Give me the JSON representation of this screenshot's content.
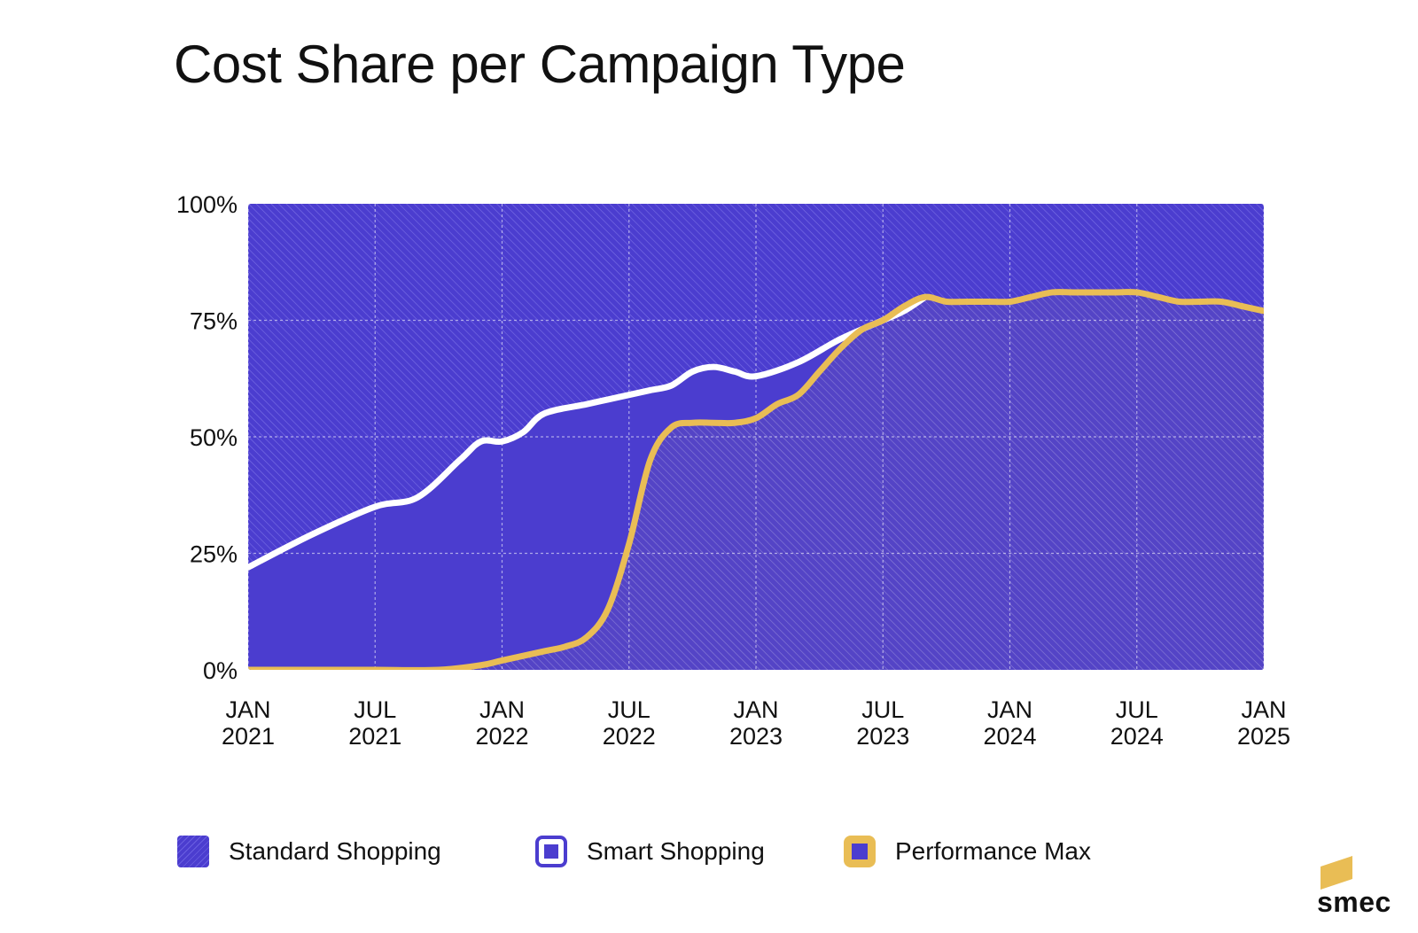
{
  "header": {
    "title": "Cost Share per Campaign Type"
  },
  "chart_data": {
    "type": "area",
    "title": "Cost Share per Campaign Type",
    "xlabel": "",
    "ylabel": "",
    "x_range": [
      "2021-01",
      "2025-01"
    ],
    "ylim": [
      0,
      100
    ],
    "y_ticks": [
      "100%",
      "75%",
      "50%",
      "25%",
      "0%"
    ],
    "x_ticks": [
      {
        "month": "2021-01",
        "line1": "JAN",
        "line2": "2021"
      },
      {
        "month": "2021-07",
        "line1": "JUL",
        "line2": "2021"
      },
      {
        "month": "2022-01",
        "line1": "JAN",
        "line2": "2022"
      },
      {
        "month": "2022-07",
        "line1": "JUL",
        "line2": "2022"
      },
      {
        "month": "2023-01",
        "line1": "JAN",
        "line2": "2023"
      },
      {
        "month": "2023-07",
        "line1": "JUL",
        "line2": "2023"
      },
      {
        "month": "2024-01",
        "line1": "JAN",
        "line2": "2024"
      },
      {
        "month": "2024-07",
        "line1": "JUL",
        "line2": "2024"
      },
      {
        "month": "2025-01",
        "line1": "JAN",
        "line2": "2025"
      }
    ],
    "grid": true,
    "stacked": true,
    "legend_position": "bottom",
    "series": [
      {
        "name": "Performance Max",
        "color": "#e9bd55",
        "points": [
          [
            "2021-01",
            0
          ],
          [
            "2021-04",
            0
          ],
          [
            "2021-07",
            0
          ],
          [
            "2021-10",
            0
          ],
          [
            "2021-12",
            1
          ],
          [
            "2022-01",
            2
          ],
          [
            "2022-03",
            4
          ],
          [
            "2022-04",
            5
          ],
          [
            "2022-05",
            7
          ],
          [
            "2022-06",
            13
          ],
          [
            "2022-07",
            27
          ],
          [
            "2022-08",
            45
          ],
          [
            "2022-09",
            52
          ],
          [
            "2022-10",
            53
          ],
          [
            "2022-11",
            53
          ],
          [
            "2022-12",
            53
          ],
          [
            "2023-01",
            54
          ],
          [
            "2023-02",
            57
          ],
          [
            "2023-03",
            59
          ],
          [
            "2023-04",
            64
          ],
          [
            "2023-05",
            69
          ],
          [
            "2023-06",
            73
          ],
          [
            "2023-07",
            75
          ],
          [
            "2023-08",
            78
          ],
          [
            "2023-09",
            80
          ],
          [
            "2023-10",
            79
          ],
          [
            "2023-11",
            79
          ],
          [
            "2023-12",
            79
          ],
          [
            "2024-01",
            79
          ],
          [
            "2024-02",
            80
          ],
          [
            "2024-03",
            81
          ],
          [
            "2024-04",
            81
          ],
          [
            "2024-05",
            81
          ],
          [
            "2024-06",
            81
          ],
          [
            "2024-07",
            81
          ],
          [
            "2024-08",
            80
          ],
          [
            "2024-09",
            79
          ],
          [
            "2024-10",
            79
          ],
          [
            "2024-11",
            79
          ],
          [
            "2024-12",
            78
          ],
          [
            "2025-01",
            77
          ]
        ]
      },
      {
        "name": "Smart Shopping",
        "color": "#4b3dcf",
        "cumulative_top": [
          [
            "2021-01",
            22
          ],
          [
            "2021-04",
            29
          ],
          [
            "2021-07",
            35
          ],
          [
            "2021-09",
            37
          ],
          [
            "2021-11",
            45
          ],
          [
            "2021-12",
            49
          ],
          [
            "2022-01",
            49
          ],
          [
            "2022-02",
            51
          ],
          [
            "2022-03",
            55
          ],
          [
            "2022-05",
            57
          ],
          [
            "2022-06",
            58
          ],
          [
            "2022-07",
            59
          ],
          [
            "2022-08",
            60
          ],
          [
            "2022-09",
            61
          ],
          [
            "2022-10",
            64
          ],
          [
            "2022-11",
            65
          ],
          [
            "2022-12",
            64
          ],
          [
            "2023-01",
            63
          ],
          [
            "2023-03",
            66
          ],
          [
            "2023-05",
            71
          ],
          [
            "2023-07",
            75
          ],
          [
            "2023-08",
            77
          ],
          [
            "2023-09",
            80
          ]
        ]
      },
      {
        "name": "Standard Shopping",
        "color": "#4b3dcf",
        "cumulative_top": [
          [
            "2021-01",
            100
          ],
          [
            "2025-01",
            100
          ]
        ]
      }
    ]
  },
  "legend": {
    "items": [
      {
        "label": "Standard Shopping"
      },
      {
        "label": "Smart Shopping"
      },
      {
        "label": "Performance Max"
      }
    ]
  },
  "logo": {
    "text": "smec"
  }
}
